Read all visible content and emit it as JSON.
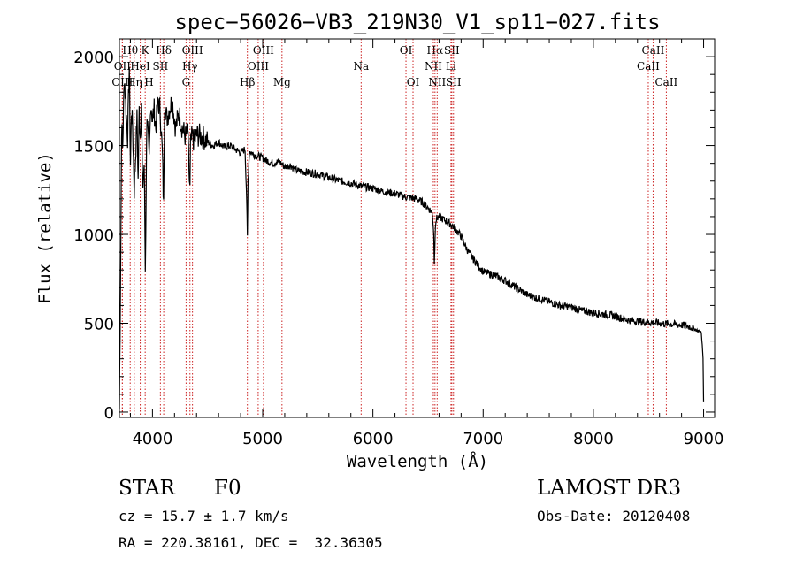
{
  "chart_data": {
    "type": "line",
    "title": "spec−56026−VB3_219N30_V1_sp11−027.fits",
    "xlabel": "Wavelength (Å)",
    "ylabel": "Flux (relative)",
    "xlim": [
      3700,
      9100
    ],
    "ylim": [
      -30,
      2100
    ],
    "xticks": [
      4000,
      5000,
      6000,
      7000,
      8000,
      9000
    ],
    "xtick_labels": [
      "4000",
      "5000",
      "6000",
      "7000",
      "8000",
      "9000"
    ],
    "yticks": [
      0,
      500,
      1000,
      1500,
      2000
    ],
    "ytick_labels": [
      "0",
      "500",
      "1000",
      "1500",
      "2000"
    ],
    "series": [
      {
        "name": "flux",
        "x": [
          3700,
          3710,
          3720,
          3730,
          3745,
          3760,
          3775,
          3790,
          3800,
          3810,
          3820,
          3835,
          3850,
          3860,
          3870,
          3880,
          3890,
          3900,
          3910,
          3925,
          3935,
          3950,
          3960,
          3970,
          3985,
          4000,
          4015,
          4030,
          4050,
          4070,
          4090,
          4101,
          4110,
          4130,
          4150,
          4180,
          4210,
          4240,
          4270,
          4300,
          4320,
          4335,
          4340,
          4345,
          4360,
          4380,
          4400,
          4450,
          4500,
          4550,
          4600,
          4650,
          4700,
          4750,
          4800,
          4840,
          4855,
          4861,
          4867,
          4880,
          4920,
          4960,
          5000,
          5050,
          5100,
          5150,
          5200,
          5250,
          5300,
          5400,
          5500,
          5600,
          5700,
          5800,
          5900,
          6000,
          6100,
          6200,
          6300,
          6400,
          6450,
          6500,
          6540,
          6552,
          6557,
          6562,
          6567,
          6572,
          6580,
          6600,
          6650,
          6700,
          6750,
          6800,
          6850,
          6900,
          6950,
          7000,
          7100,
          7200,
          7300,
          7400,
          7500,
          7600,
          7700,
          7800,
          7900,
          8000,
          8100,
          8200,
          8300,
          8400,
          8500,
          8600,
          8700,
          8800,
          8880,
          8940,
          8980,
          8995,
          9000
        ],
        "values": [
          20,
          700,
          1600,
          1500,
          1900,
          1700,
          1550,
          1950,
          1400,
          1700,
          1600,
          1250,
          1500,
          1650,
          1300,
          1700,
          1550,
          1750,
          1250,
          1400,
          800,
          1700,
          1550,
          1400,
          1750,
          1650,
          1700,
          1600,
          1750,
          1700,
          1450,
          1150,
          1750,
          1650,
          1700,
          1750,
          1600,
          1680,
          1600,
          1550,
          1580,
          1300,
          1250,
          1500,
          1550,
          1520,
          1560,
          1550,
          1520,
          1500,
          1520,
          1490,
          1500,
          1480,
          1460,
          1480,
          1200,
          980,
          1300,
          1470,
          1450,
          1440,
          1430,
          1410,
          1400,
          1410,
          1380,
          1390,
          1360,
          1350,
          1340,
          1320,
          1300,
          1290,
          1270,
          1260,
          1240,
          1230,
          1210,
          1200,
          1180,
          1150,
          1120,
          1010,
          830,
          950,
          1060,
          1080,
          1090,
          1100,
          1080,
          1060,
          1030,
          990,
          920,
          870,
          830,
          790,
          770,
          740,
          700,
          660,
          640,
          620,
          600,
          590,
          570,
          560,
          550,
          540,
          520,
          510,
          505,
          500,
          495,
          490,
          480,
          460,
          450,
          300,
          60
        ]
      }
    ],
    "line_markers": [
      {
        "label": "Hθ",
        "x": 3798,
        "row": 0
      },
      {
        "label": "K",
        "x": 3934,
        "row": 0
      },
      {
        "label": "Hδ",
        "x": 4102,
        "row": 0
      },
      {
        "label": "OIII",
        "x": 4363,
        "row": 0
      },
      {
        "label": "OIII",
        "x": 5007,
        "row": 0
      },
      {
        "label": "OI",
        "x": 6300,
        "row": 0
      },
      {
        "label": "Hα",
        "x": 6563,
        "row": 0
      },
      {
        "label": "SII",
        "x": 6716,
        "row": 0
      },
      {
        "label": "CaII",
        "x": 8542,
        "row": 0
      },
      {
        "label": "OII",
        "x": 3727,
        "row": 1
      },
      {
        "label": "HeI",
        "x": 3889,
        "row": 1
      },
      {
        "label": "SII",
        "x": 4072,
        "row": 1
      },
      {
        "label": "Hγ",
        "x": 4340,
        "row": 1
      },
      {
        "label": "OIII",
        "x": 4959,
        "row": 1
      },
      {
        "label": "Na",
        "x": 5893,
        "row": 1
      },
      {
        "label": "NII",
        "x": 6548,
        "row": 1
      },
      {
        "label": "Li",
        "x": 6708,
        "row": 1
      },
      {
        "label": "CaII",
        "x": 8498,
        "row": 1
      },
      {
        "label": "OIII",
        "x": 3727,
        "row": 2
      },
      {
        "label": "Hη",
        "x": 3835,
        "row": 2
      },
      {
        "label": "H",
        "x": 3969,
        "row": 2
      },
      {
        "label": "G",
        "x": 4305,
        "row": 2
      },
      {
        "label": "Hβ",
        "x": 4861,
        "row": 2
      },
      {
        "label": "Mg",
        "x": 5175,
        "row": 2
      },
      {
        "label": "OI",
        "x": 6364,
        "row": 2
      },
      {
        "label": "NII",
        "x": 6583,
        "row": 2
      },
      {
        "label": "SII",
        "x": 6731,
        "row": 2
      },
      {
        "label": "CaII",
        "x": 8662,
        "row": 2
      }
    ]
  },
  "info": {
    "object_class": "STAR",
    "subclass": "F0",
    "survey": "LAMOST DR3",
    "redshift": "cz = 15.7 ± 1.7 km/s",
    "obs_date": "Obs-Date: 20120408",
    "coords": "RA = 220.38161, DEC =  32.36305"
  }
}
